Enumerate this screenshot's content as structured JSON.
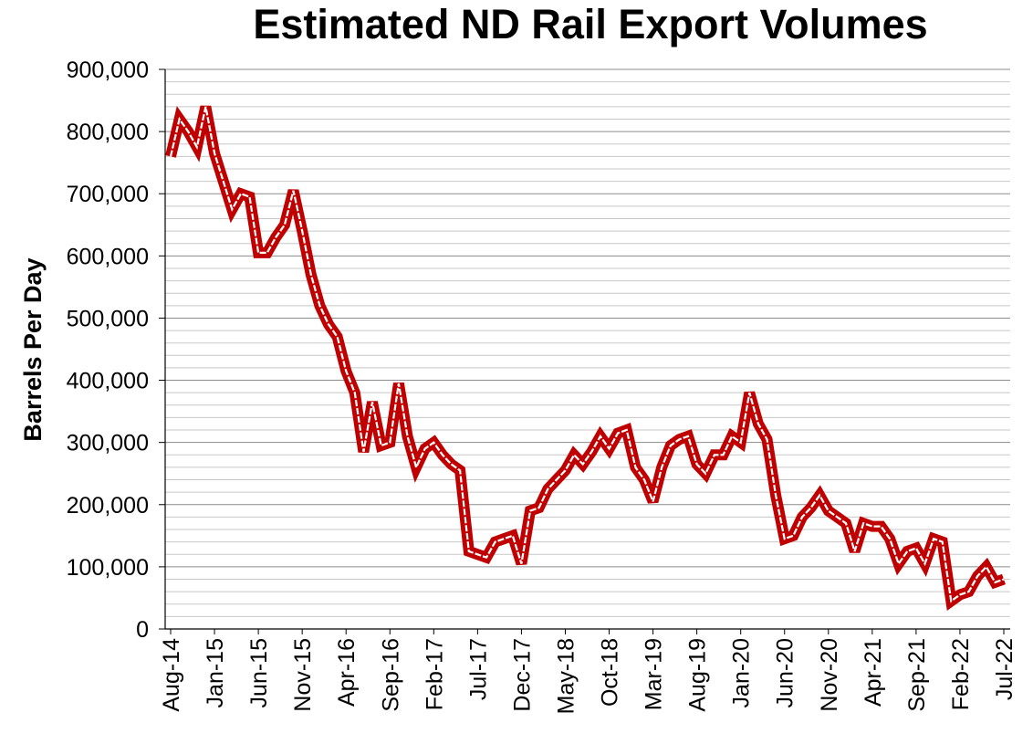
{
  "chart_data": {
    "type": "line",
    "title": "Estimated ND Rail Export Volumes",
    "y_label": "Barrels Per Day",
    "categories": [
      "Aug-14",
      null,
      null,
      null,
      null,
      "Jan-15",
      null,
      null,
      null,
      null,
      "Jun-15",
      null,
      null,
      null,
      null,
      "Nov-15",
      null,
      null,
      null,
      null,
      "Apr-16",
      null,
      null,
      null,
      null,
      "Sep-16",
      null,
      null,
      null,
      null,
      "Feb-17",
      null,
      null,
      null,
      null,
      "Jul-17",
      null,
      null,
      null,
      null,
      "Dec-17",
      null,
      null,
      null,
      null,
      "May-18",
      null,
      null,
      null,
      null,
      "Oct-18",
      null,
      null,
      null,
      null,
      "Mar-19",
      null,
      null,
      null,
      null,
      "Aug-19",
      null,
      null,
      null,
      null,
      "Jan-20",
      null,
      null,
      null,
      null,
      "Jun-20",
      null,
      null,
      null,
      null,
      "Nov-20",
      null,
      null,
      null,
      null,
      "Apr-21",
      null,
      null,
      null,
      null,
      "Sep-21",
      null,
      null,
      null,
      null,
      "Feb-22",
      null,
      null,
      null,
      null,
      "Jul-22"
    ],
    "series": [
      {
        "name": "Estimated ND Rail Export Volumes",
        "color": "#c00000",
        "values": [
          760000,
          820000,
          800000,
          775000,
          840000,
          765000,
          720000,
          675000,
          700000,
          695000,
          605000,
          605000,
          630000,
          650000,
          705000,
          640000,
          570000,
          520000,
          490000,
          470000,
          415000,
          380000,
          285000,
          365000,
          295000,
          300000,
          395000,
          310000,
          260000,
          290000,
          300000,
          280000,
          265000,
          255000,
          125000,
          120000,
          115000,
          140000,
          145000,
          150000,
          105000,
          190000,
          195000,
          225000,
          240000,
          255000,
          280000,
          265000,
          285000,
          310000,
          290000,
          315000,
          320000,
          260000,
          240000,
          205000,
          260000,
          295000,
          305000,
          310000,
          265000,
          250000,
          280000,
          280000,
          310000,
          300000,
          380000,
          330000,
          305000,
          215000,
          145000,
          150000,
          180000,
          195000,
          215000,
          190000,
          180000,
          170000,
          125000,
          170000,
          165000,
          165000,
          145000,
          105000,
          125000,
          130000,
          105000,
          145000,
          140000,
          45000,
          55000,
          60000,
          85000,
          100000,
          75000,
          80000
        ]
      }
    ],
    "ylim": [
      0,
      900000
    ],
    "yticks": [
      0,
      {
        "value": 100000,
        "label": "100,000"
      },
      {
        "value": 200000,
        "label": "200,000"
      },
      {
        "value": 300000,
        "label": "300,000"
      },
      {
        "value": 400000,
        "label": "400,000"
      },
      {
        "value": 500000,
        "label": "500,000"
      },
      {
        "value": 600000,
        "label": "600,000"
      },
      {
        "value": 700000,
        "label": "700,000"
      },
      {
        "value": 800000,
        "label": "800,000"
      },
      {
        "value": 900000,
        "label": "900,000"
      }
    ],
    "yminor_ticks": [
      20000,
      40000,
      60000,
      80000,
      120000,
      140000,
      160000,
      180000,
      220000,
      240000,
      260000,
      280000,
      320000,
      340000,
      360000,
      380000,
      420000,
      440000,
      460000,
      480000,
      520000,
      540000,
      560000,
      580000,
      620000,
      640000,
      660000,
      680000,
      720000,
      740000,
      760000,
      780000,
      820000,
      840000,
      860000,
      880000
    ],
    "grid": true
  }
}
